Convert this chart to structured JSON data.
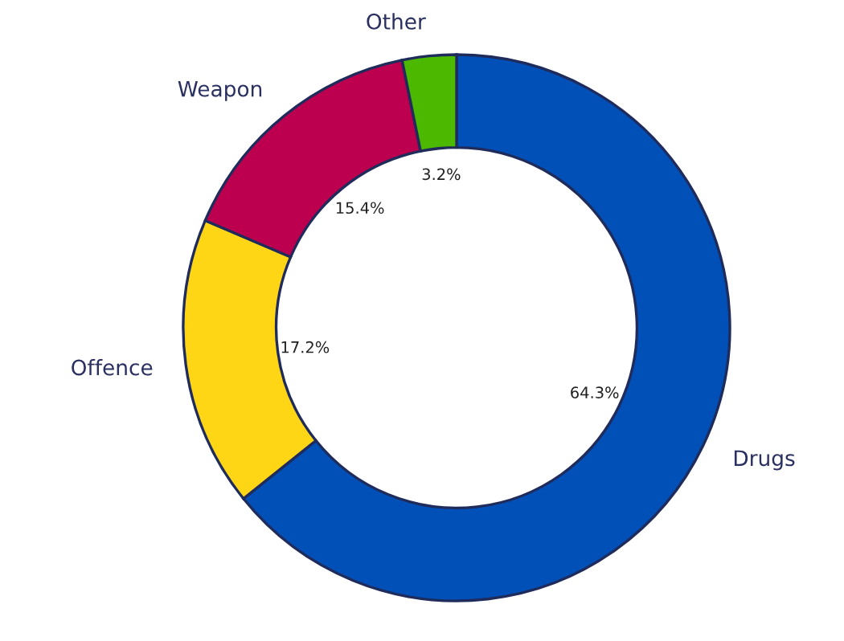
{
  "chart_data": {
    "type": "donut",
    "categories": [
      "Drugs",
      "Offence",
      "Weapon",
      "Other"
    ],
    "values": [
      64.3,
      17.2,
      15.4,
      3.2
    ],
    "colors": [
      "#0050b8",
      "#ffd616",
      "#bc004f",
      "#4cb800"
    ],
    "value_labels": [
      "64.3%",
      "17.2%",
      "15.4%",
      "3.2%"
    ],
    "legend": false
  }
}
